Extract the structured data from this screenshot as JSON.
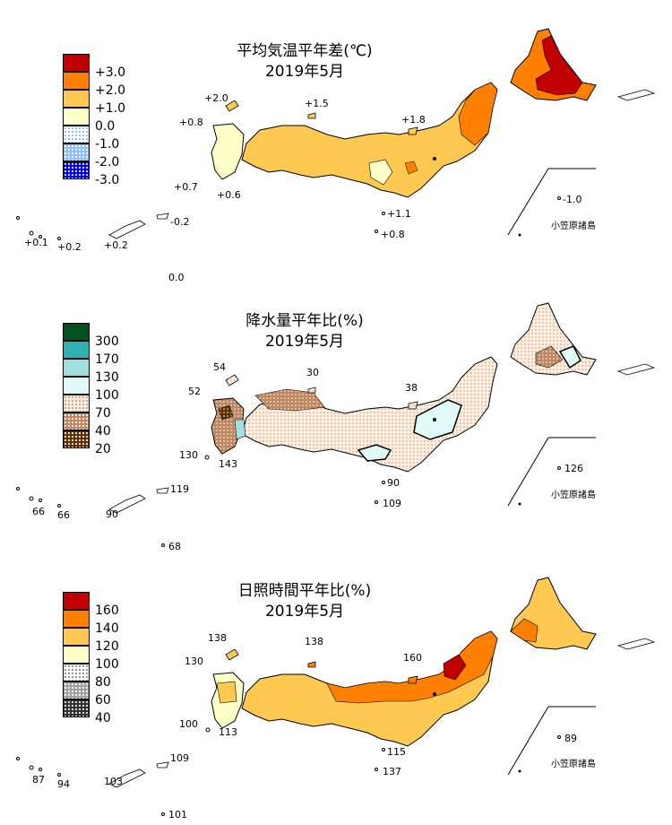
{
  "panels": [
    {
      "title": "平均気温平年差(℃)",
      "date": "2019年5月",
      "legend": [
        {
          "label": "+3.0",
          "color": "#c00000",
          "pattern": "solid"
        },
        {
          "label": "+2.0",
          "color": "#ff8000",
          "pattern": "solid"
        },
        {
          "label": "+1.0",
          "color": "#ffc850",
          "pattern": "solid"
        },
        {
          "label": "0.0",
          "color": "#ffffc8",
          "pattern": "solid"
        },
        {
          "label": "-1.0",
          "color": "#e8f4ff",
          "pattern": "dots"
        },
        {
          "label": "-2.0",
          "color": "#90c0f8",
          "pattern": "dots"
        },
        {
          "label": "-3.0",
          "color": "#0000e0",
          "pattern": "dots"
        }
      ],
      "values": [
        "+2.0",
        "+1.5",
        "+0.8",
        "+1.8",
        "+0.7",
        "+0.6",
        "+1.1",
        "+0.8",
        "-1.0",
        "-0.2",
        "+0.1",
        "+0.2",
        "+0.2",
        "0.0"
      ],
      "bonin_label": "小笠原諸島"
    },
    {
      "title": "降水量平年比(%)",
      "date": "2019年5月",
      "legend": [
        {
          "label": "300",
          "color": "#005020",
          "pattern": "solid"
        },
        {
          "label": "170",
          "color": "#30b0b0",
          "pattern": "solid"
        },
        {
          "label": "130",
          "color": "#a0e0e0",
          "pattern": "solid"
        },
        {
          "label": "100",
          "color": "#e0fafa",
          "pattern": "solid"
        },
        {
          "label": "70",
          "color": "#f8e8d8",
          "pattern": "dots"
        },
        {
          "label": "40",
          "color": "#c08860",
          "pattern": "dots"
        },
        {
          "label": "20",
          "color": "#603000",
          "pattern": "dots"
        }
      ],
      "values": [
        "54",
        "30",
        "52",
        "38",
        "130",
        "143",
        "90",
        "109",
        "126",
        "119",
        "66",
        "66",
        "90",
        "68"
      ],
      "bonin_label": "小笠原諸島"
    },
    {
      "title": "日照時間平年比(%)",
      "date": "2019年5月",
      "legend": [
        {
          "label": "160",
          "color": "#c00000",
          "pattern": "solid"
        },
        {
          "label": "140",
          "color": "#ff8000",
          "pattern": "solid"
        },
        {
          "label": "120",
          "color": "#ffc850",
          "pattern": "solid"
        },
        {
          "label": "100",
          "color": "#ffffc8",
          "pattern": "solid"
        },
        {
          "label": "80",
          "color": "#ffffff",
          "pattern": "dots"
        },
        {
          "label": "60",
          "color": "#a0a0a0",
          "pattern": "dots"
        },
        {
          "label": "40",
          "color": "#303030",
          "pattern": "dots"
        }
      ],
      "values": [
        "138",
        "138",
        "130",
        "160",
        "100",
        "113",
        "115",
        "137",
        "89",
        "109",
        "87",
        "94",
        "103",
        "101"
      ],
      "bonin_label": "小笠原諸島"
    }
  ]
}
